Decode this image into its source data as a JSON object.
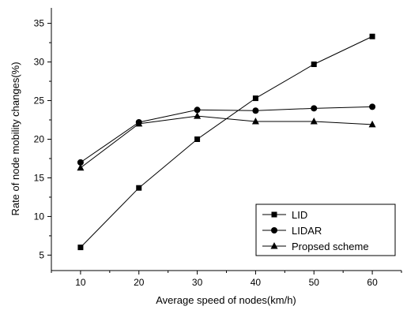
{
  "chart_data": {
    "type": "line",
    "xlabel": "Average speed of nodes(km/h)",
    "ylabel": "Rate of node mobility changes(%)",
    "xlim": [
      5,
      65
    ],
    "ylim": [
      3,
      37
    ],
    "x_ticks": [
      10,
      20,
      30,
      40,
      50,
      60
    ],
    "y_ticks": [
      5,
      10,
      15,
      20,
      25,
      30,
      35
    ],
    "x": [
      10,
      20,
      30,
      40,
      50,
      60
    ],
    "grid": false,
    "legend_position": "bottom-right",
    "series": [
      {
        "name": "LID",
        "marker": "square",
        "values": [
          6.0,
          13.7,
          20.0,
          25.3,
          29.7,
          33.3
        ]
      },
      {
        "name": "LIDAR",
        "marker": "circle",
        "values": [
          17.0,
          22.2,
          23.8,
          23.7,
          24.0,
          24.2
        ]
      },
      {
        "name": "Propsed scheme",
        "marker": "triangle",
        "values": [
          16.3,
          22.0,
          23.0,
          22.3,
          22.3,
          21.9
        ]
      }
    ]
  }
}
